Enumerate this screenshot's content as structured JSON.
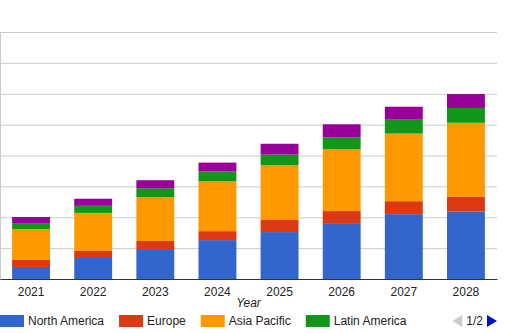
{
  "chart_data": {
    "type": "bar",
    "stacked": true,
    "x_label": "Year",
    "categories": [
      "2021",
      "2022",
      "2023",
      "2024",
      "2025",
      "2026",
      "2027",
      "2028"
    ],
    "series": [
      {
        "name": "North America",
        "color": "#3366cc",
        "values": [
          3.9,
          6.8,
          9.7,
          12.6,
          15.2,
          18.1,
          21.0,
          21.9
        ]
      },
      {
        "name": "Europe",
        "color": "#dc3912",
        "values": [
          2.3,
          2.3,
          2.6,
          2.9,
          3.9,
          3.9,
          4.2,
          4.8
        ]
      },
      {
        "name": "Asia Pacific",
        "color": "#ff9900",
        "values": [
          10.0,
          12.3,
          14.2,
          16.1,
          17.7,
          20.0,
          21.9,
          23.9
        ]
      },
      {
        "name": "Latin America",
        "color": "#109618",
        "values": [
          1.9,
          2.3,
          2.9,
          3.2,
          3.5,
          3.9,
          4.5,
          4.8
        ]
      },
      {
        "color": "#990099",
        "values": [
          2.0,
          2.3,
          2.6,
          2.9,
          3.5,
          4.2,
          4.2,
          4.5
        ]
      }
    ],
    "ylim": [
      0,
      80
    ],
    "yticks": [
      0,
      10,
      20,
      30,
      40,
      50,
      60,
      70,
      80
    ],
    "grid": true,
    "tick_labels": "x",
    "legend": "bottom",
    "annotations": [
      "1/2"
    ]
  }
}
